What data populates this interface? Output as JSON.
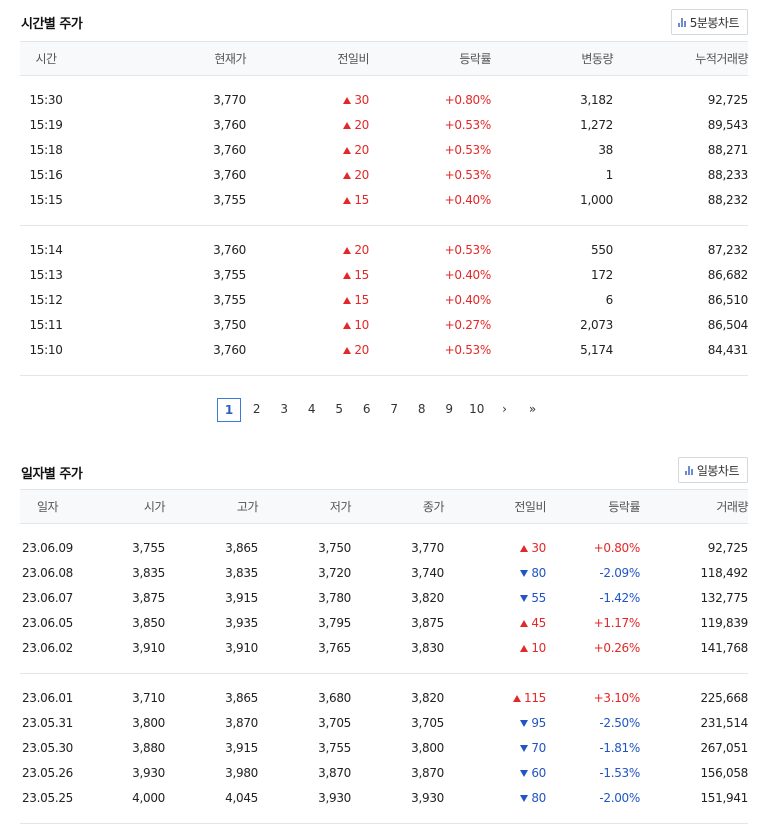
{
  "time_section": {
    "title": "시간별 주가",
    "chart_button": "5분봉차트",
    "headers": [
      "시간",
      "현재가",
      "전일비",
      "등락률",
      "변동량",
      "누적거래량"
    ],
    "groups": [
      [
        {
          "time": "15:30",
          "price": "3,770",
          "change": "30",
          "dir": "up",
          "rate": "+0.80%",
          "delta": "3,182",
          "cum": "92,725"
        },
        {
          "time": "15:19",
          "price": "3,760",
          "change": "20",
          "dir": "up",
          "rate": "+0.53%",
          "delta": "1,272",
          "cum": "89,543"
        },
        {
          "time": "15:18",
          "price": "3,760",
          "change": "20",
          "dir": "up",
          "rate": "+0.53%",
          "delta": "38",
          "cum": "88,271"
        },
        {
          "time": "15:16",
          "price": "3,760",
          "change": "20",
          "dir": "up",
          "rate": "+0.53%",
          "delta": "1",
          "cum": "88,233"
        },
        {
          "time": "15:15",
          "price": "3,755",
          "change": "15",
          "dir": "up",
          "rate": "+0.40%",
          "delta": "1,000",
          "cum": "88,232"
        }
      ],
      [
        {
          "time": "15:14",
          "price": "3,760",
          "change": "20",
          "dir": "up",
          "rate": "+0.53%",
          "delta": "550",
          "cum": "87,232"
        },
        {
          "time": "15:13",
          "price": "3,755",
          "change": "15",
          "dir": "up",
          "rate": "+0.40%",
          "delta": "172",
          "cum": "86,682"
        },
        {
          "time": "15:12",
          "price": "3,755",
          "change": "15",
          "dir": "up",
          "rate": "+0.40%",
          "delta": "6",
          "cum": "86,510"
        },
        {
          "time": "15:11",
          "price": "3,750",
          "change": "10",
          "dir": "up",
          "rate": "+0.27%",
          "delta": "2,073",
          "cum": "86,504"
        },
        {
          "time": "15:10",
          "price": "3,760",
          "change": "20",
          "dir": "up",
          "rate": "+0.53%",
          "delta": "5,174",
          "cum": "84,431"
        }
      ]
    ]
  },
  "pagination": {
    "current": "1",
    "pages": [
      "2",
      "3",
      "4",
      "5",
      "6",
      "7",
      "8",
      "9",
      "10"
    ],
    "next": "›",
    "last": "»"
  },
  "daily_section": {
    "title": "일자별 주가",
    "chart_button": "일봉차트",
    "headers": [
      "일자",
      "시가",
      "고가",
      "저가",
      "종가",
      "전일비",
      "등락률",
      "거래량"
    ],
    "groups": [
      [
        {
          "date": "23.06.09",
          "open": "3,755",
          "high": "3,865",
          "low": "3,750",
          "close": "3,770",
          "change": "30",
          "dir": "up",
          "rate": "+0.80%",
          "volume": "92,725"
        },
        {
          "date": "23.06.08",
          "open": "3,835",
          "high": "3,835",
          "low": "3,720",
          "close": "3,740",
          "change": "80",
          "dir": "down",
          "rate": "-2.09%",
          "volume": "118,492"
        },
        {
          "date": "23.06.07",
          "open": "3,875",
          "high": "3,915",
          "low": "3,780",
          "close": "3,820",
          "change": "55",
          "dir": "down",
          "rate": "-1.42%",
          "volume": "132,775"
        },
        {
          "date": "23.06.05",
          "open": "3,850",
          "high": "3,935",
          "low": "3,795",
          "close": "3,875",
          "change": "45",
          "dir": "up",
          "rate": "+1.17%",
          "volume": "119,839"
        },
        {
          "date": "23.06.02",
          "open": "3,910",
          "high": "3,910",
          "low": "3,765",
          "close": "3,830",
          "change": "10",
          "dir": "up",
          "rate": "+0.26%",
          "volume": "141,768"
        }
      ],
      [
        {
          "date": "23.06.01",
          "open": "3,710",
          "high": "3,865",
          "low": "3,680",
          "close": "3,820",
          "change": "115",
          "dir": "up",
          "rate": "+3.10%",
          "volume": "225,668"
        },
        {
          "date": "23.05.31",
          "open": "3,800",
          "high": "3,870",
          "low": "3,705",
          "close": "3,705",
          "change": "95",
          "dir": "down",
          "rate": "-2.50%",
          "volume": "231,514"
        },
        {
          "date": "23.05.30",
          "open": "3,880",
          "high": "3,915",
          "low": "3,755",
          "close": "3,800",
          "change": "70",
          "dir": "down",
          "rate": "-1.81%",
          "volume": "267,051"
        },
        {
          "date": "23.05.26",
          "open": "3,930",
          "high": "3,980",
          "low": "3,870",
          "close": "3,870",
          "change": "60",
          "dir": "down",
          "rate": "-1.53%",
          "volume": "156,058"
        },
        {
          "date": "23.05.25",
          "open": "4,000",
          "high": "4,045",
          "low": "3,930",
          "close": "3,930",
          "change": "80",
          "dir": "down",
          "rate": "-2.00%",
          "volume": "151,941"
        }
      ]
    ]
  },
  "colors": {
    "up": "#e22828",
    "down": "#2155c5",
    "accent": "#3a7ad9"
  },
  "icons": {
    "chart_button": "bar-chart-icon",
    "up": "triangle-up-icon",
    "down": "triangle-down-icon"
  }
}
